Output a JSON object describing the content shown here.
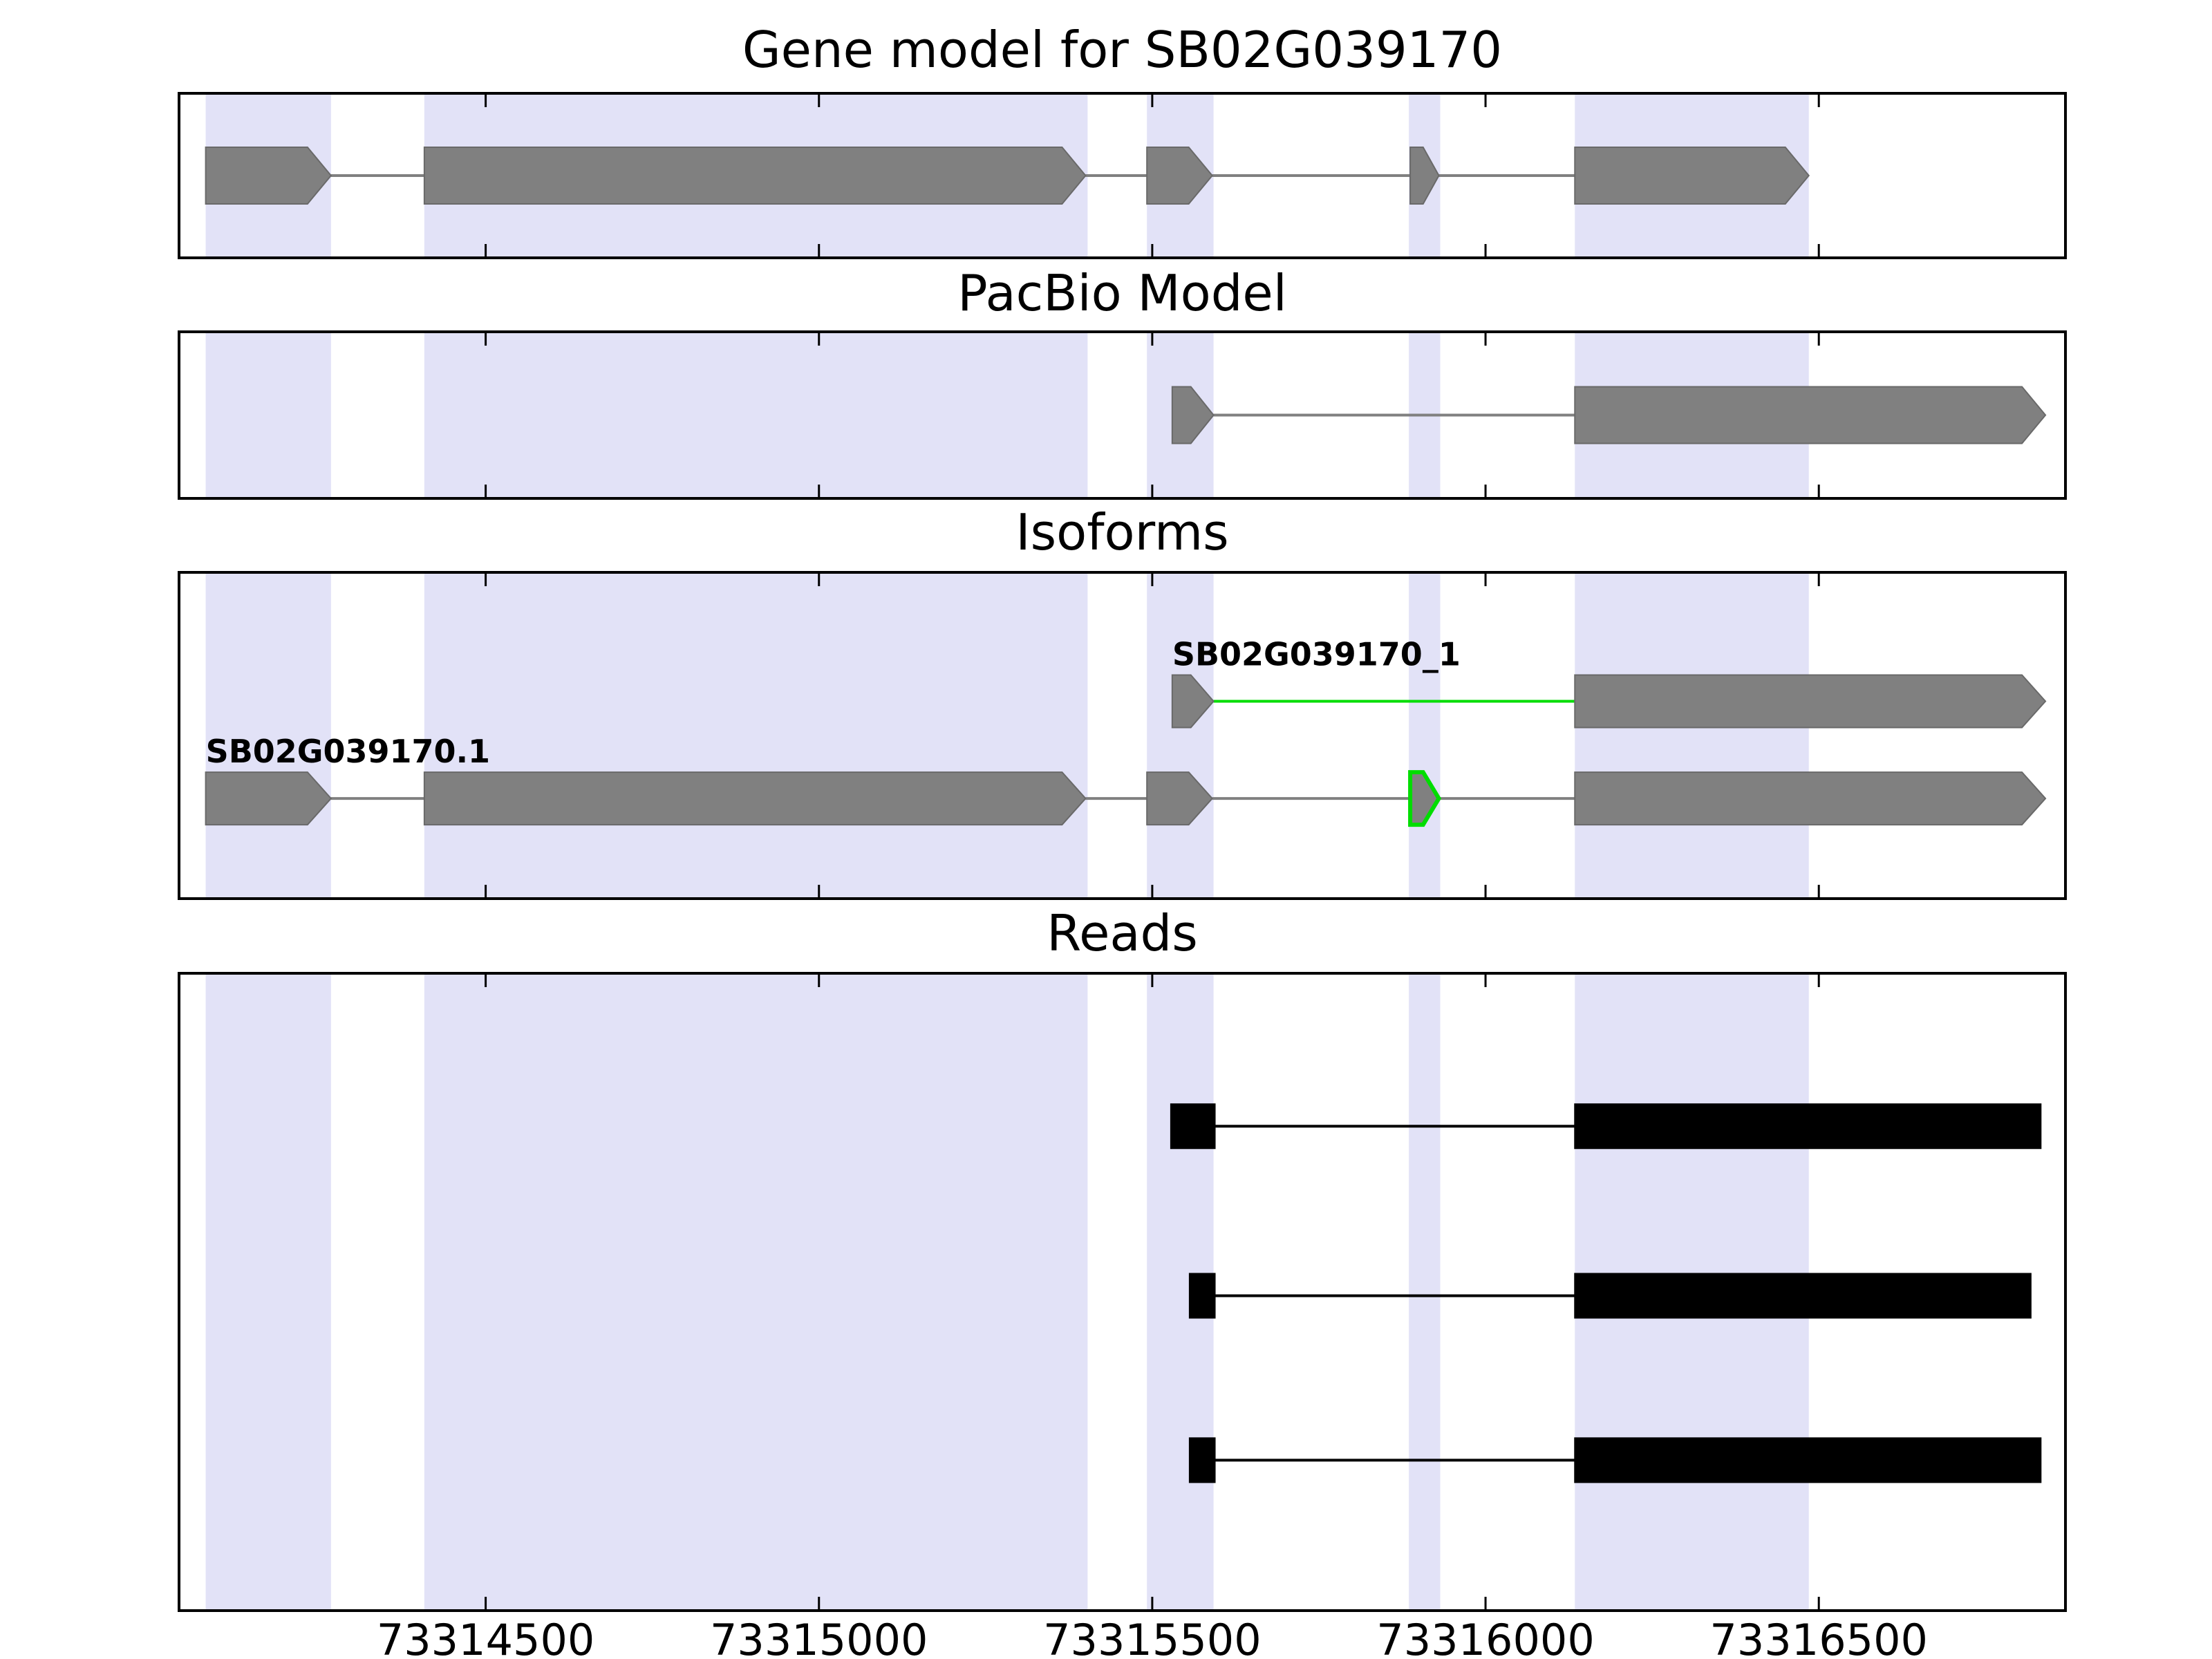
{
  "figure": {
    "background": "#ffffff",
    "text_color": "#000000"
  },
  "chart_data": {
    "type": "gene-model-tracks",
    "x_axis": {
      "xlim": [
        73314040,
        73316870
      ],
      "ticks": [
        73314500,
        73315000,
        73315500,
        73316000,
        73316500
      ],
      "tick_labels": [
        "73314500",
        "73315000",
        "73315500",
        "73316000",
        "73316500"
      ]
    },
    "highlight_color": "#e2e2f7",
    "highlight_regions": [
      [
        73314080,
        73314268
      ],
      [
        73314408,
        73315403
      ],
      [
        73315492,
        73315592
      ],
      [
        73315885,
        73315932
      ],
      [
        73316134,
        73316485
      ]
    ],
    "panels": [
      {
        "title": "Gene model for SB02G039170",
        "tracks": [
          {
            "label": "",
            "shape": "arrow",
            "color": "#808080",
            "edge_color": "#696969",
            "intron_color": "#808080",
            "exons": [
              [
                73314080,
                73314268
              ],
              [
                73314408,
                73315400
              ],
              [
                73315492,
                73315590
              ],
              [
                73315887,
                73315930
              ],
              [
                73316134,
                73316485
              ]
            ]
          }
        ]
      },
      {
        "title": "PacBio Model",
        "tracks": [
          {
            "label": "",
            "shape": "arrow",
            "color": "#808080",
            "edge_color": "#696969",
            "intron_color": "#808080",
            "exons": [
              [
                73315530,
                73315592
              ],
              [
                73316134,
                73316840
              ]
            ]
          }
        ]
      },
      {
        "title": "Isoforms",
        "tracks": [
          {
            "label": "SB02G039170_1",
            "shape": "arrow",
            "color": "#808080",
            "edge_color": "#696969",
            "intron_color": "#00dd00",
            "exons": [
              [
                73315530,
                73315592
              ],
              [
                73316134,
                73316840
              ]
            ]
          },
          {
            "label": "SB02G039170.1",
            "shape": "arrow",
            "color": "#808080",
            "edge_color": "#696969",
            "intron_color": "#808080",
            "highlight_exon_index": 3,
            "highlight_exon_color": "#00dd00",
            "exons": [
              [
                73314080,
                73314268
              ],
              [
                73314408,
                73315400
              ],
              [
                73315492,
                73315590
              ],
              [
                73315887,
                73315930
              ],
              [
                73316134,
                73316840
              ]
            ]
          }
        ]
      },
      {
        "title": "Reads",
        "tracks": [
          {
            "label": "",
            "shape": "rect",
            "color": "#000000",
            "edge_color": "#000000",
            "intron_color": "#000000",
            "exons": [
              [
                73315528,
                73315594
              ],
              [
                73316134,
                73316833
              ]
            ]
          },
          {
            "label": "",
            "shape": "rect",
            "color": "#000000",
            "edge_color": "#000000",
            "intron_color": "#000000",
            "exons": [
              [
                73315556,
                73315594
              ],
              [
                73316134,
                73316818
              ]
            ]
          },
          {
            "label": "",
            "shape": "rect",
            "color": "#000000",
            "edge_color": "#000000",
            "intron_color": "#000000",
            "exons": [
              [
                73315556,
                73315594
              ],
              [
                73316134,
                73316833
              ]
            ]
          }
        ]
      }
    ]
  }
}
